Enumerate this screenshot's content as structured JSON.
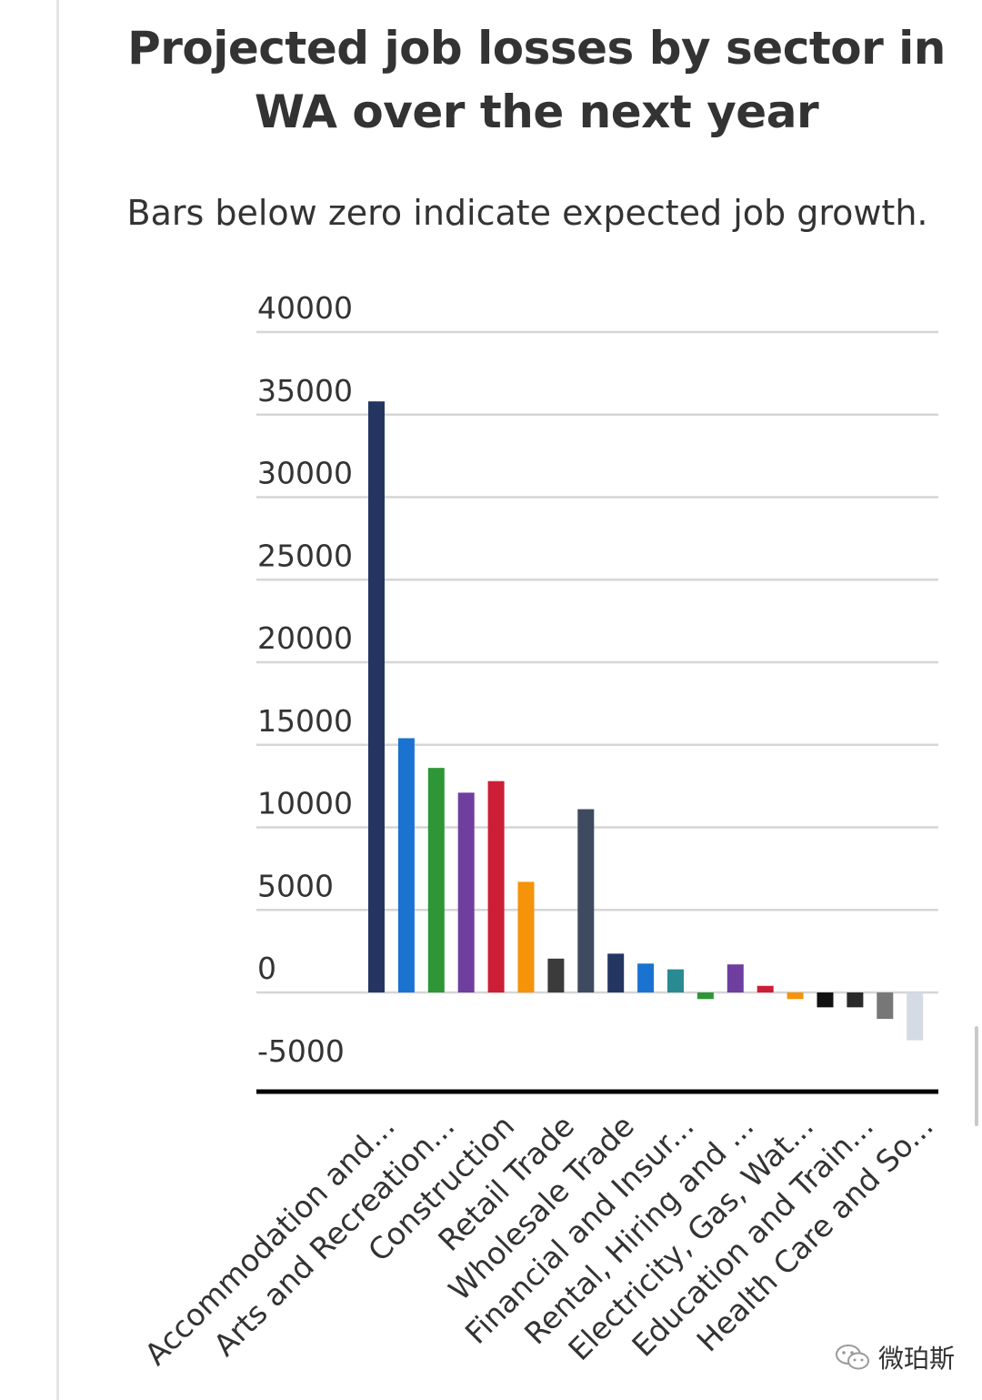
{
  "chart_data": {
    "type": "bar",
    "title": "Projected job losses by sector in WA over the next year",
    "subtitle": "Bars below zero indicate expected job growth.",
    "xlabel": "",
    "ylabel": "",
    "ylim": [
      -5000,
      40000
    ],
    "yticks": [
      40000,
      35000,
      30000,
      25000,
      20000,
      15000,
      10000,
      5000,
      0,
      -5000
    ],
    "grid": true,
    "legend": "none",
    "categories": [
      "Accommodation and...",
      "Arts and Recreation...",
      "Construction",
      "Retail Trade",
      "Wholesale Trade",
      "Financial and Insur...",
      "Rental, Hiring and ...",
      "Electricity, Gas, Wat...",
      "Education and Train...",
      "Health Care and So..."
    ],
    "bars": [
      {
        "value": 35800,
        "color": "#243562"
      },
      {
        "value": 15400,
        "color": "#1a73d0"
      },
      {
        "value": 13600,
        "color": "#2e9636"
      },
      {
        "value": 12100,
        "color": "#6f3fa0"
      },
      {
        "value": 12800,
        "color": "#cc1e36"
      },
      {
        "value": 6700,
        "color": "#f5930a"
      },
      {
        "value": 2050,
        "color": "#3b3b3b"
      },
      {
        "value": 11100,
        "color": "#3e4a5e"
      },
      {
        "value": 2350,
        "color": "#243562"
      },
      {
        "value": 1750,
        "color": "#1a73d0"
      },
      {
        "value": 1400,
        "color": "#2a8a92"
      },
      {
        "value": -400,
        "color": "#2e9636"
      },
      {
        "value": 1700,
        "color": "#6f3fa0"
      },
      {
        "value": 400,
        "color": "#cc1e36"
      },
      {
        "value": -400,
        "color": "#f5930a"
      },
      {
        "value": -900,
        "color": "#111111"
      },
      {
        "value": -900,
        "color": "#2a2a2a"
      },
      {
        "value": -1600,
        "color": "#777777"
      },
      {
        "value": -2900,
        "color": "#d5dbe4"
      }
    ]
  },
  "watermark": {
    "icon": "wechat-icon",
    "text": "微珀斯"
  }
}
